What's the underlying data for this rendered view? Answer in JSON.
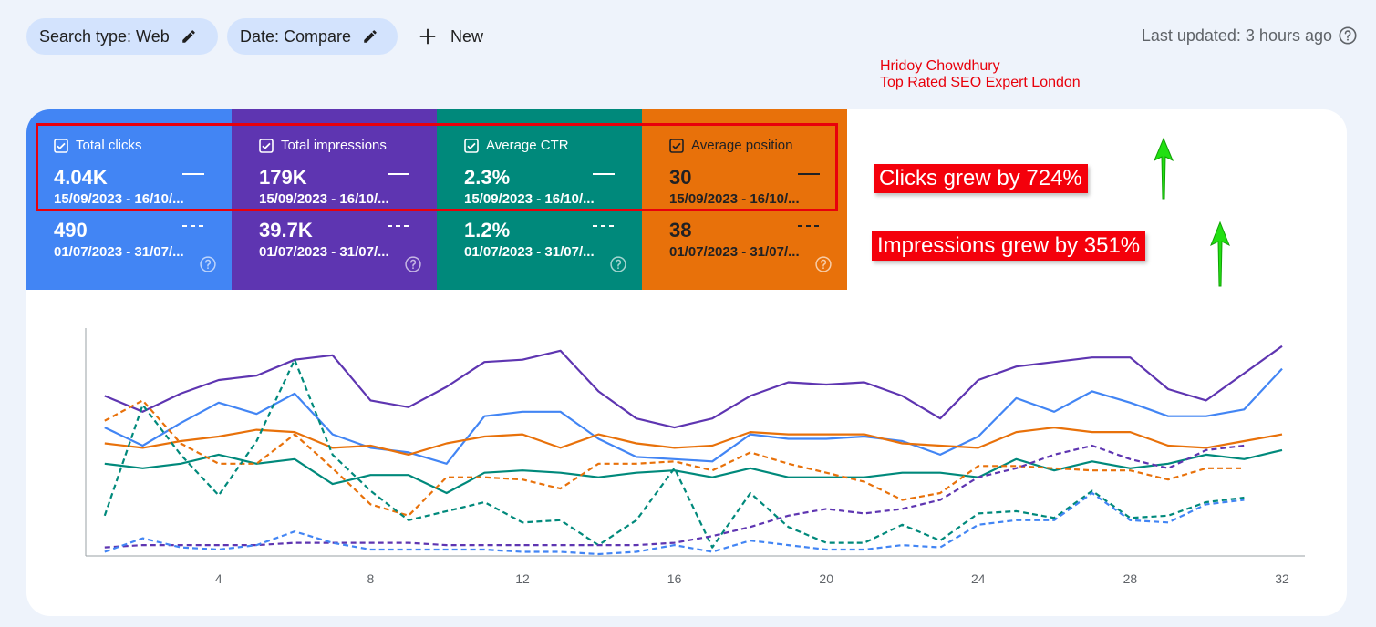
{
  "toolbar": {
    "search_chip": "Search type: Web",
    "date_chip": "Date: Compare",
    "new_label": "New",
    "last_updated": "Last updated: 3 hours ago"
  },
  "author": {
    "line1": "Hridoy Chowdhury",
    "line2": "Top Rated SEO Expert London"
  },
  "cards": [
    {
      "label": "Total clicks",
      "value_current": "4.04K",
      "range_current": "15/09/2023 - 16/10/...",
      "value_previous": "490",
      "range_previous": "01/07/2023 - 31/07/...",
      "color": "#4285f4",
      "text_color": "#ffffff"
    },
    {
      "label": "Total impressions",
      "value_current": "179K",
      "range_current": "15/09/2023 - 16/10/...",
      "value_previous": "39.7K",
      "range_previous": "01/07/2023 - 31/07/...",
      "color": "#5e35b1",
      "text_color": "#ffffff"
    },
    {
      "label": "Average CTR",
      "value_current": "2.3%",
      "range_current": "15/09/2023 - 16/10/...",
      "value_previous": "1.2%",
      "range_previous": "01/07/2023 - 31/07/...",
      "color": "#00897b",
      "text_color": "#ffffff"
    },
    {
      "label": "Average position",
      "value_current": "30",
      "range_current": "15/09/2023 - 16/10/...",
      "value_previous": "38",
      "range_previous": "01/07/2023 - 31/07/...",
      "color": "#e8710a",
      "text_color": "#202124"
    }
  ],
  "callouts": {
    "clicks": "Clicks grew by 724%",
    "impressions": "Impressions grew by 351%"
  },
  "icons": {
    "pencil": "pencil-icon",
    "plus": "plus-icon",
    "help": "help-circle-icon",
    "checkbox": "checkbox-checked-icon",
    "arrow": "up-arrow-icon"
  },
  "chart_data": {
    "type": "line",
    "x_ticks": [
      4,
      8,
      12,
      16,
      20,
      24,
      28,
      32
    ],
    "xlim": [
      0.5,
      32.6
    ],
    "ylim": [
      0,
      1
    ],
    "grid": false,
    "series": [
      {
        "color": "#5e35b1",
        "style": "solid",
        "x": [
          1,
          2,
          3,
          4,
          5,
          6,
          7,
          8,
          9,
          10,
          11,
          12,
          13,
          14,
          15,
          16,
          17,
          18,
          19,
          20,
          21,
          22,
          23,
          24,
          25,
          26,
          27,
          28,
          29,
          30,
          31,
          32
        ],
        "values": [
          0.7,
          0.63,
          0.71,
          0.77,
          0.79,
          0.86,
          0.88,
          0.68,
          0.65,
          0.74,
          0.85,
          0.86,
          0.9,
          0.72,
          0.6,
          0.56,
          0.6,
          0.7,
          0.76,
          0.75,
          0.76,
          0.7,
          0.6,
          0.77,
          0.83,
          0.85,
          0.87,
          0.87,
          0.73,
          0.68,
          0.8,
          0.92
        ]
      },
      {
        "color": "#4285f4",
        "style": "solid",
        "x": [
          1,
          2,
          3,
          4,
          5,
          6,
          7,
          8,
          9,
          10,
          11,
          12,
          13,
          14,
          15,
          16,
          17,
          18,
          19,
          20,
          21,
          22,
          23,
          24,
          25,
          26,
          27,
          28,
          29,
          30,
          31,
          32
        ],
        "values": [
          0.56,
          0.48,
          0.58,
          0.67,
          0.62,
          0.71,
          0.53,
          0.47,
          0.45,
          0.4,
          0.61,
          0.63,
          0.63,
          0.51,
          0.43,
          0.42,
          0.41,
          0.53,
          0.51,
          0.51,
          0.52,
          0.5,
          0.44,
          0.52,
          0.69,
          0.63,
          0.72,
          0.67,
          0.61,
          0.61,
          0.64,
          0.82
        ]
      },
      {
        "color": "#e8710a",
        "style": "solid",
        "x": [
          1,
          2,
          3,
          4,
          5,
          6,
          7,
          8,
          9,
          10,
          11,
          12,
          13,
          14,
          15,
          16,
          17,
          18,
          19,
          20,
          21,
          22,
          23,
          24,
          25,
          26,
          27,
          28,
          29,
          30,
          31,
          32
        ],
        "values": [
          0.49,
          0.47,
          0.5,
          0.52,
          0.55,
          0.54,
          0.47,
          0.48,
          0.44,
          0.49,
          0.52,
          0.53,
          0.47,
          0.53,
          0.49,
          0.47,
          0.48,
          0.54,
          0.53,
          0.53,
          0.53,
          0.49,
          0.48,
          0.47,
          0.54,
          0.56,
          0.54,
          0.54,
          0.48,
          0.47,
          0.5,
          0.53
        ]
      },
      {
        "color": "#00897b",
        "style": "solid",
        "x": [
          1,
          2,
          3,
          4,
          5,
          6,
          7,
          8,
          9,
          10,
          11,
          12,
          13,
          14,
          15,
          16,
          17,
          18,
          19,
          20,
          21,
          22,
          23,
          24,
          25,
          26,
          27,
          28,
          29,
          30,
          31,
          32
        ],
        "values": [
          0.4,
          0.38,
          0.4,
          0.44,
          0.4,
          0.42,
          0.31,
          0.35,
          0.35,
          0.27,
          0.36,
          0.37,
          0.36,
          0.34,
          0.36,
          0.37,
          0.34,
          0.38,
          0.34,
          0.34,
          0.34,
          0.36,
          0.36,
          0.34,
          0.42,
          0.37,
          0.41,
          0.38,
          0.4,
          0.44,
          0.42,
          0.46
        ]
      },
      {
        "color": "#e8710a",
        "style": "dashed",
        "x": [
          1,
          2,
          3,
          4,
          5,
          6,
          7,
          8,
          9,
          10,
          11,
          12,
          13,
          14,
          15,
          16,
          17,
          18,
          19,
          20,
          21,
          22,
          23,
          24,
          25,
          26,
          27,
          28,
          29,
          30,
          31
        ],
        "values": [
          0.59,
          0.68,
          0.49,
          0.4,
          0.4,
          0.53,
          0.38,
          0.22,
          0.17,
          0.34,
          0.34,
          0.33,
          0.29,
          0.4,
          0.4,
          0.41,
          0.37,
          0.45,
          0.4,
          0.36,
          0.32,
          0.24,
          0.27,
          0.39,
          0.39,
          0.38,
          0.37,
          0.37,
          0.33,
          0.38,
          0.38
        ]
      },
      {
        "color": "#00897b",
        "style": "dashed",
        "x": [
          1,
          2,
          3,
          4,
          5,
          6,
          7,
          8,
          9,
          10,
          11,
          12,
          13,
          14,
          15,
          16,
          17,
          18,
          19,
          20,
          21,
          22,
          23,
          24,
          25,
          26,
          27,
          28,
          29,
          30,
          31
        ],
        "values": [
          0.17,
          0.66,
          0.44,
          0.26,
          0.5,
          0.86,
          0.44,
          0.28,
          0.15,
          0.19,
          0.23,
          0.14,
          0.15,
          0.04,
          0.15,
          0.38,
          0.03,
          0.27,
          0.12,
          0.05,
          0.05,
          0.13,
          0.06,
          0.18,
          0.19,
          0.16,
          0.28,
          0.16,
          0.17,
          0.23,
          0.25
        ]
      },
      {
        "color": "#5e35b1",
        "style": "dashed",
        "x": [
          1,
          2,
          3,
          4,
          5,
          6,
          7,
          8,
          9,
          10,
          11,
          12,
          13,
          14,
          15,
          16,
          17,
          18,
          19,
          20,
          21,
          22,
          23,
          24,
          25,
          26,
          27,
          28,
          29,
          30,
          31
        ],
        "values": [
          0.03,
          0.04,
          0.04,
          0.04,
          0.04,
          0.05,
          0.05,
          0.05,
          0.05,
          0.04,
          0.04,
          0.04,
          0.04,
          0.04,
          0.04,
          0.05,
          0.08,
          0.12,
          0.17,
          0.2,
          0.18,
          0.2,
          0.24,
          0.34,
          0.38,
          0.44,
          0.48,
          0.42,
          0.38,
          0.46,
          0.48
        ]
      },
      {
        "color": "#4285f4",
        "style": "dashed",
        "x": [
          1,
          2,
          3,
          4,
          5,
          6,
          7,
          8,
          9,
          10,
          11,
          12,
          13,
          14,
          15,
          16,
          17,
          18,
          19,
          20,
          21,
          22,
          23,
          24,
          25,
          26,
          27,
          28,
          29,
          30,
          31
        ],
        "values": [
          0.01,
          0.07,
          0.03,
          0.02,
          0.04,
          0.1,
          0.05,
          0.02,
          0.02,
          0.02,
          0.02,
          0.01,
          0.01,
          0.0,
          0.01,
          0.04,
          0.01,
          0.06,
          0.04,
          0.02,
          0.02,
          0.04,
          0.03,
          0.13,
          0.15,
          0.15,
          0.27,
          0.15,
          0.14,
          0.22,
          0.24
        ]
      }
    ]
  }
}
